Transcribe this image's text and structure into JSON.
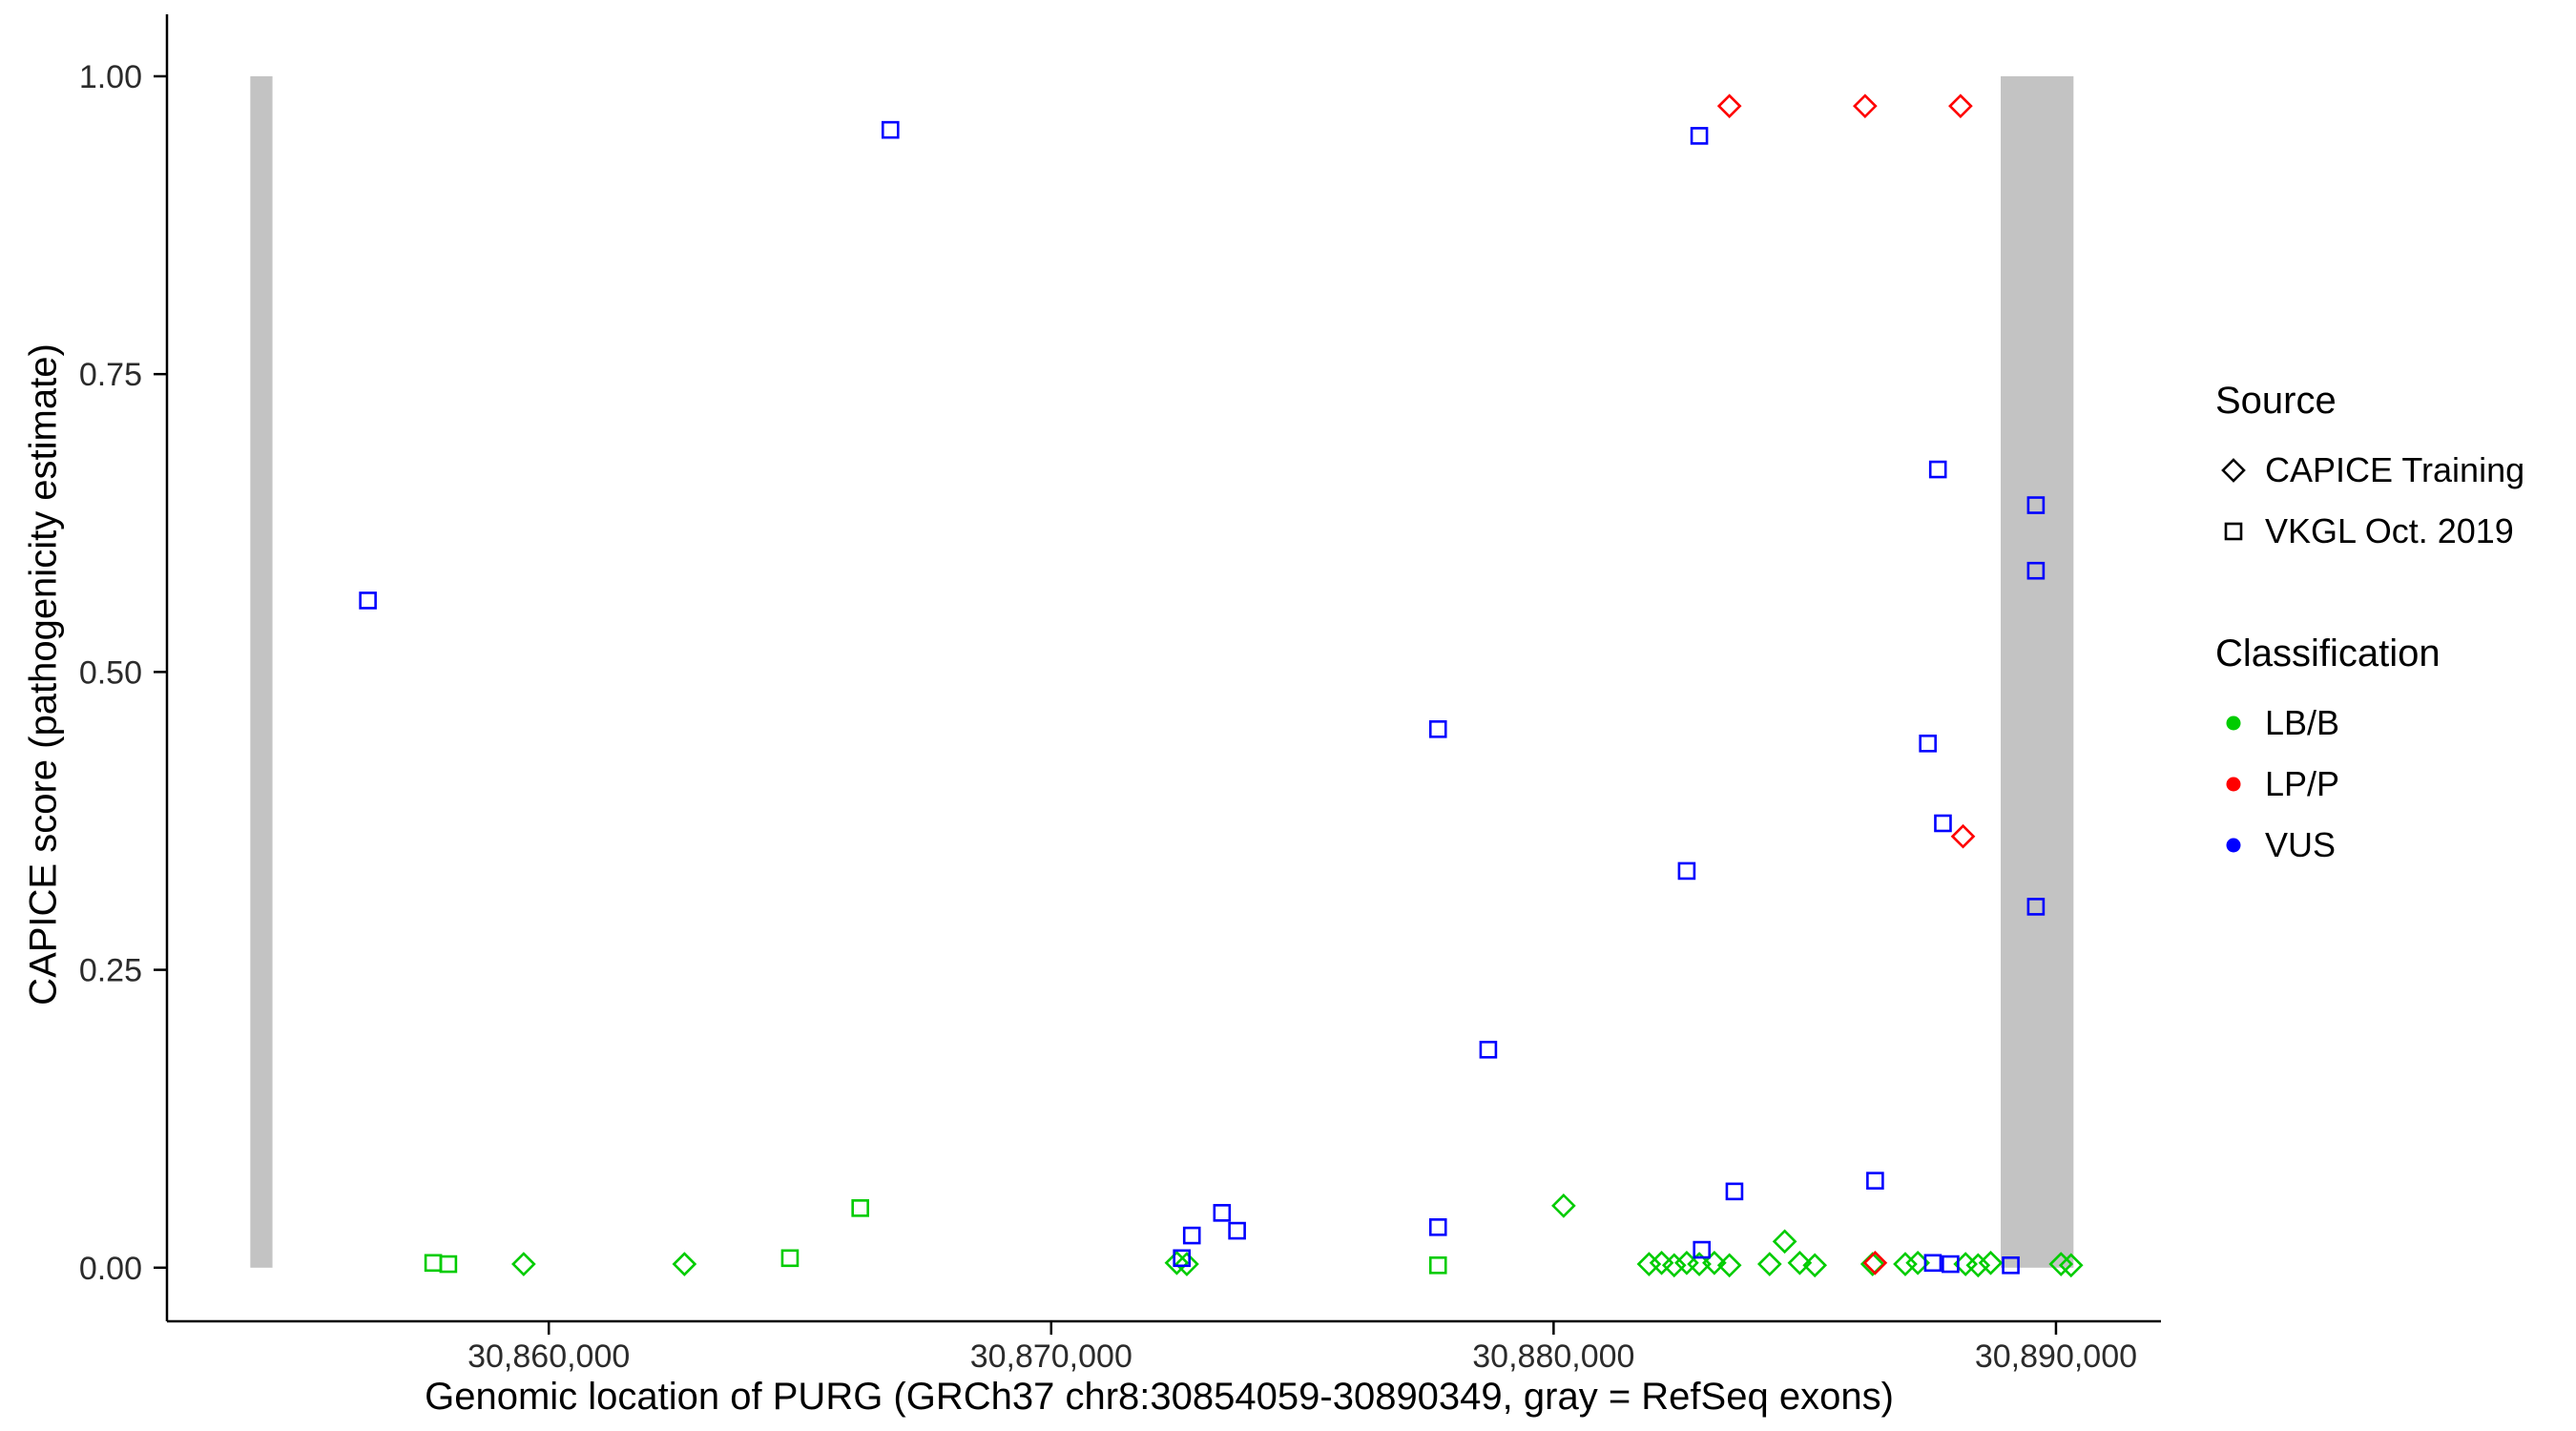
{
  "figure": {
    "background": "#FFFFFF",
    "axis_color": "#000000",
    "tick_label_color": "#2b2b2b"
  },
  "chart_data": {
    "type": "scatter",
    "title": "",
    "xlabel": "Genomic location of PURG (GRCh37 chr8:30854059-30890349, gray = RefSeq exons)",
    "ylabel": "CAPICE score (pathogenicity estimate)",
    "xlim": [
      30852400,
      30891900
    ],
    "ylim": [
      -0.045,
      1.04
    ],
    "grid": false,
    "legend_position": "right",
    "x_ticks": [
      {
        "value": 30860000,
        "label": "30,860,000"
      },
      {
        "value": 30870000,
        "label": "30,870,000"
      },
      {
        "value": 30880000,
        "label": "30,880,000"
      },
      {
        "value": 30890000,
        "label": "30,890,000"
      }
    ],
    "y_ticks": [
      {
        "value": 0.0,
        "label": "0.00"
      },
      {
        "value": 0.25,
        "label": "0.25"
      },
      {
        "value": 0.5,
        "label": "0.50"
      },
      {
        "value": 0.75,
        "label": "0.75"
      },
      {
        "value": 1.0,
        "label": "1.00"
      }
    ],
    "exon_color": "#C3C3C3",
    "exon_regions": [
      {
        "start": 30854059,
        "end": 30854500
      },
      {
        "start": 30888900,
        "end": 30890349
      }
    ],
    "legend": {
      "source": {
        "title": "Source",
        "items": [
          {
            "label": "CAPICE Training",
            "shape": "diamond"
          },
          {
            "label": "VKGL Oct. 2019",
            "shape": "square"
          }
        ]
      },
      "classification": {
        "title": "Classification",
        "items": [
          {
            "label": "LB/B",
            "color": "#00CC00"
          },
          {
            "label": "LP/P",
            "color": "#FF0000"
          },
          {
            "label": "VUS",
            "color": "#0000FF"
          }
        ]
      }
    },
    "series": [
      {
        "name": "LB/B CAPICE Training",
        "classification": "LB/B",
        "source": "CAPICE Training",
        "shape": "diamond",
        "color": "#00CC00",
        "points": [
          [
            30859500,
            0.003
          ],
          [
            30862700,
            0.003
          ],
          [
            30872500,
            0.004
          ],
          [
            30872700,
            0.003
          ],
          [
            30880200,
            0.052
          ],
          [
            30881900,
            0.003
          ],
          [
            30882150,
            0.004
          ],
          [
            30882400,
            0.002
          ],
          [
            30882650,
            0.004
          ],
          [
            30882900,
            0.003
          ],
          [
            30883200,
            0.004
          ],
          [
            30883500,
            0.002
          ],
          [
            30884300,
            0.003
          ],
          [
            30884600,
            0.022
          ],
          [
            30884900,
            0.004
          ],
          [
            30885200,
            0.002
          ],
          [
            30886350,
            0.003
          ],
          [
            30887000,
            0.003
          ],
          [
            30887250,
            0.004
          ],
          [
            30888200,
            0.003
          ],
          [
            30888450,
            0.002
          ],
          [
            30888700,
            0.004
          ],
          [
            30890100,
            0.003
          ],
          [
            30890300,
            0.002
          ]
        ]
      },
      {
        "name": "LB/B VKGL Oct. 2019",
        "classification": "LB/B",
        "source": "VKGL Oct. 2019",
        "shape": "square",
        "color": "#00CC00",
        "points": [
          [
            30857700,
            0.004
          ],
          [
            30858000,
            0.003
          ],
          [
            30864800,
            0.008
          ],
          [
            30866200,
            0.05
          ],
          [
            30877700,
            0.002
          ]
        ]
      },
      {
        "name": "LP/P CAPICE Training",
        "classification": "LP/P",
        "source": "CAPICE Training",
        "shape": "diamond",
        "color": "#FF0000",
        "points": [
          [
            30883500,
            0.975
          ],
          [
            30886200,
            0.975
          ],
          [
            30888100,
            0.975
          ],
          [
            30888150,
            0.362
          ],
          [
            30886400,
            0.004
          ]
        ]
      },
      {
        "name": "VUS VKGL Oct. 2019",
        "classification": "VUS",
        "source": "VKGL Oct. 2019",
        "shape": "square",
        "color": "#0000FF",
        "points": [
          [
            30856400,
            0.56
          ],
          [
            30866800,
            0.955
          ],
          [
            30882900,
            0.95
          ],
          [
            30887650,
            0.67
          ],
          [
            30889600,
            0.64
          ],
          [
            30889600,
            0.585
          ],
          [
            30877700,
            0.452
          ],
          [
            30887450,
            0.44
          ],
          [
            30887750,
            0.373
          ],
          [
            30882650,
            0.333
          ],
          [
            30889600,
            0.303
          ],
          [
            30878700,
            0.183
          ],
          [
            30886400,
            0.073
          ],
          [
            30883600,
            0.064
          ],
          [
            30873400,
            0.046
          ],
          [
            30877700,
            0.034
          ],
          [
            30873700,
            0.031
          ],
          [
            30872800,
            0.027
          ],
          [
            30882950,
            0.015
          ],
          [
            30872600,
            0.008
          ],
          [
            30887550,
            0.004
          ],
          [
            30887900,
            0.003
          ],
          [
            30889100,
            0.002
          ]
        ]
      }
    ]
  }
}
